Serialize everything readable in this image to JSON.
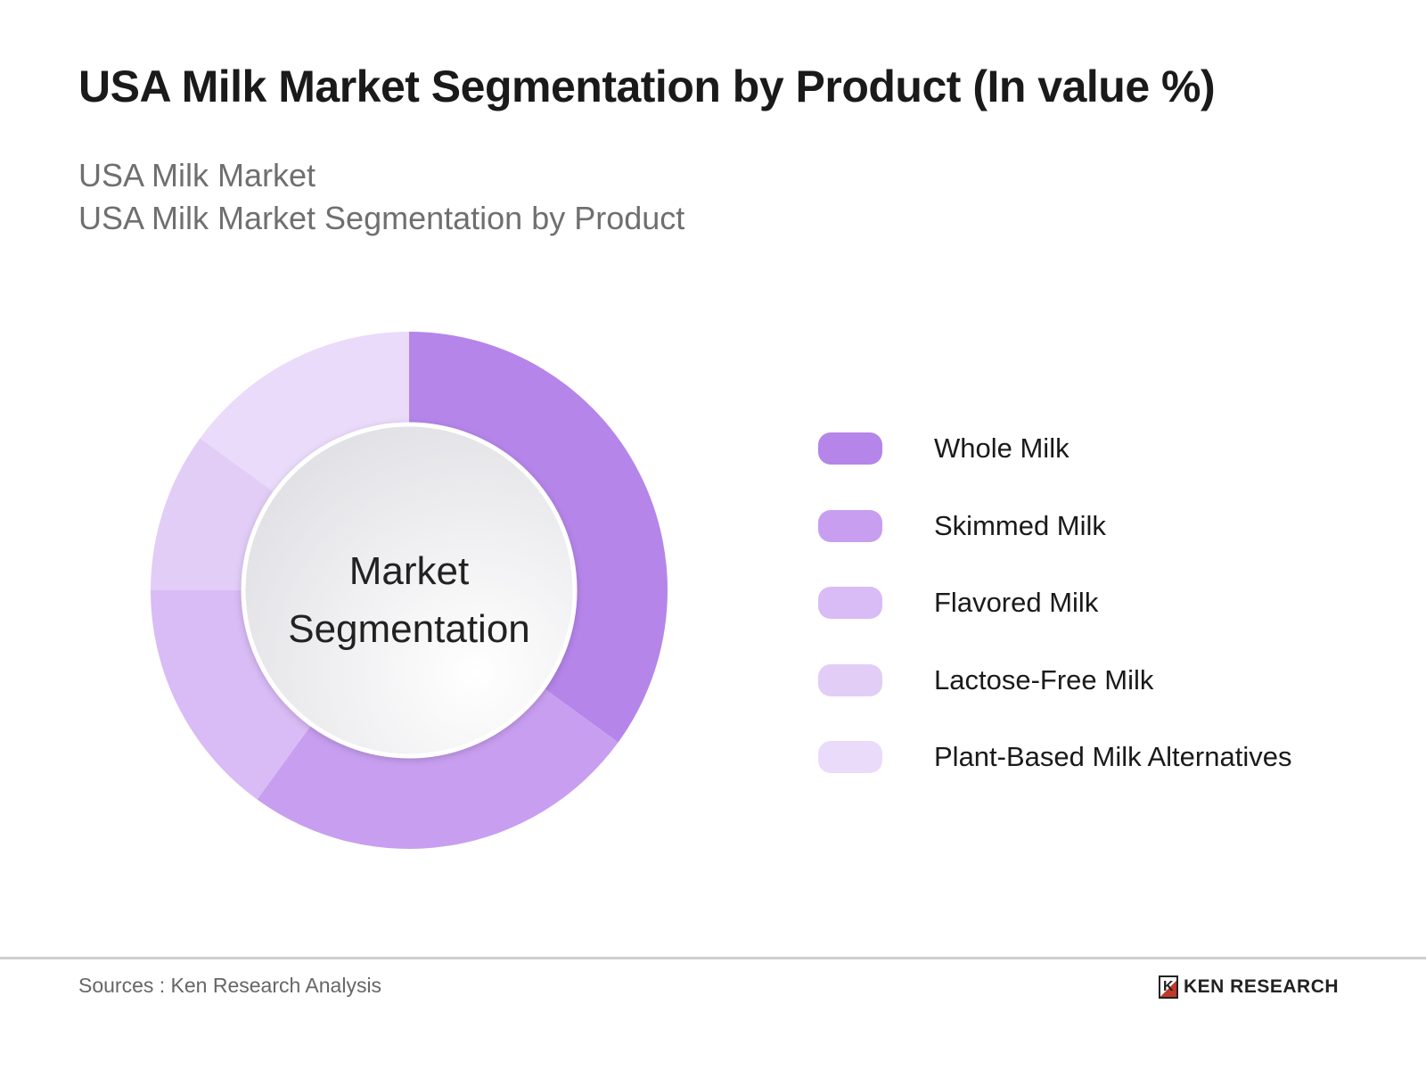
{
  "title": "USA Milk Market Segmentation by Product (In value %)",
  "subtitle_1": "USA Milk Market",
  "subtitle_2": "USA Milk Market Segmentation by Product",
  "chart_data": {
    "type": "pie",
    "variant": "donut",
    "center_label_1": "Market",
    "center_label_2": "Segmentation",
    "categories": [
      "Whole Milk",
      "Skimmed Milk",
      "Flavored Milk",
      "Lactose-Free Milk",
      "Plant-Based Milk Alternatives"
    ],
    "values": [
      35,
      25,
      15,
      10,
      15
    ],
    "colors": [
      "#b585ea",
      "#c89ef0",
      "#d9bbf5",
      "#e2cdf7",
      "#eadbfa"
    ],
    "legend_position": "right",
    "start_angle": "top, clockwise"
  },
  "footer": {
    "source": "Sources : Ken Research Analysis",
    "logo_text": "KEN RESEARCH",
    "logo_mark": "K"
  }
}
